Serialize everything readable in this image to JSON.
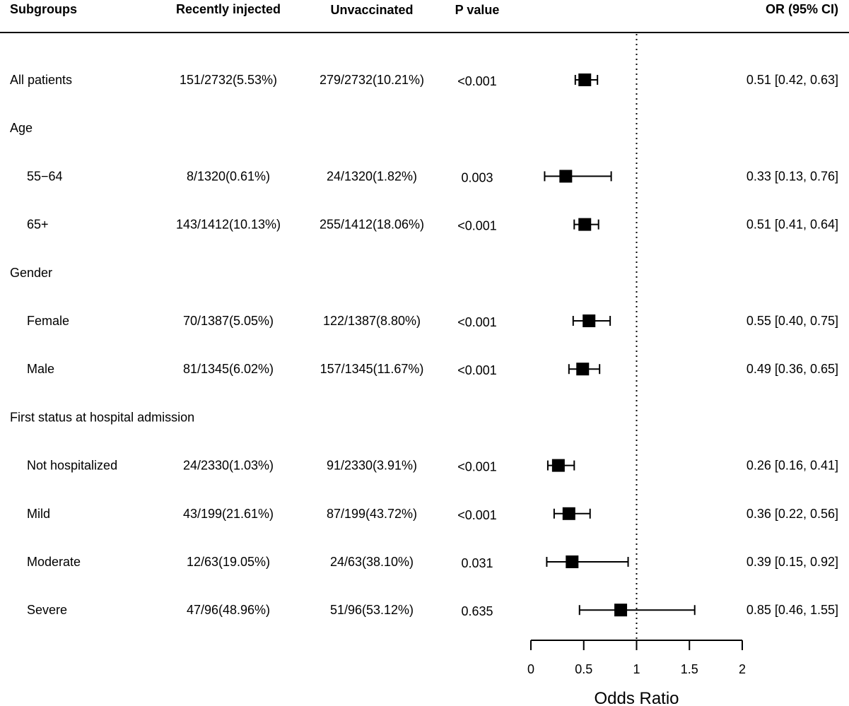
{
  "chart_data": {
    "type": "forest",
    "headers": {
      "subgroups": "Subgroups",
      "recently_injected": "Recently injected",
      "unvaccinated": "Unvaccinated",
      "p_value": "P value",
      "or_ci": "OR (95% CI)"
    },
    "rows": [
      {
        "label": "All patients",
        "indent": false,
        "recently_injected": "151/2732(5.53%)",
        "unvaccinated": "279/2732(10.21%)",
        "p_value": "<0.001",
        "or": 0.51,
        "lower": 0.42,
        "upper": 0.63,
        "or_text": "0.51 [0.42, 0.63]"
      },
      {
        "label": "Age",
        "indent": false,
        "group_header": true
      },
      {
        "label": "55−64",
        "indent": true,
        "recently_injected": "8/1320(0.61%)",
        "unvaccinated": "24/1320(1.82%)",
        "p_value": "0.003",
        "or": 0.33,
        "lower": 0.13,
        "upper": 0.76,
        "or_text": "0.33 [0.13, 0.76]"
      },
      {
        "label": "65+",
        "indent": true,
        "recently_injected": "143/1412(10.13%)",
        "unvaccinated": "255/1412(18.06%)",
        "p_value": "<0.001",
        "or": 0.51,
        "lower": 0.41,
        "upper": 0.64,
        "or_text": "0.51 [0.41, 0.64]"
      },
      {
        "label": "Gender",
        "indent": false,
        "group_header": true
      },
      {
        "label": "Female",
        "indent": true,
        "recently_injected": "70/1387(5.05%)",
        "unvaccinated": "122/1387(8.80%)",
        "p_value": "<0.001",
        "or": 0.55,
        "lower": 0.4,
        "upper": 0.75,
        "or_text": "0.55 [0.40, 0.75]"
      },
      {
        "label": "Male",
        "indent": true,
        "recently_injected": "81/1345(6.02%)",
        "unvaccinated": "157/1345(11.67%)",
        "p_value": "<0.001",
        "or": 0.49,
        "lower": 0.36,
        "upper": 0.65,
        "or_text": "0.49 [0.36, 0.65]"
      },
      {
        "label": "First status at hospital admission",
        "indent": false,
        "group_header": true
      },
      {
        "label": "Not hospitalized",
        "indent": true,
        "recently_injected": "24/2330(1.03%)",
        "unvaccinated": "91/2330(3.91%)",
        "p_value": "<0.001",
        "or": 0.26,
        "lower": 0.16,
        "upper": 0.41,
        "or_text": "0.26 [0.16, 0.41]"
      },
      {
        "label": "Mild",
        "indent": true,
        "recently_injected": "43/199(21.61%)",
        "unvaccinated": "87/199(43.72%)",
        "p_value": "<0.001",
        "or": 0.36,
        "lower": 0.22,
        "upper": 0.56,
        "or_text": "0.36 [0.22, 0.56]"
      },
      {
        "label": "Moderate",
        "indent": true,
        "recently_injected": "12/63(19.05%)",
        "unvaccinated": "24/63(38.10%)",
        "p_value": "0.031",
        "or": 0.39,
        "lower": 0.15,
        "upper": 0.92,
        "or_text": "0.39 [0.15, 0.92]"
      },
      {
        "label": "Severe",
        "indent": true,
        "recently_injected": "47/96(48.96%)",
        "unvaccinated": "51/96(53.12%)",
        "p_value": "0.635",
        "or": 0.85,
        "lower": 0.46,
        "upper": 1.55,
        "or_text": "0.85 [0.46, 1.55]"
      }
    ],
    "x_axis": {
      "label": "Odds Ratio",
      "range": [
        0,
        2
      ],
      "ticks": [
        0,
        0.5,
        1,
        1.5,
        2
      ],
      "tick_labels": [
        "0",
        "0.5",
        "1",
        "1.5",
        "2"
      ],
      "reference_line": 1
    },
    "marker_color": "#000000"
  }
}
